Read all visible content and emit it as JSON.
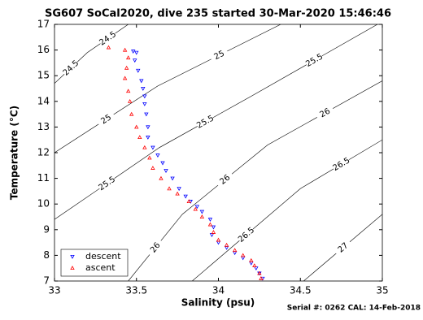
{
  "chart_data": {
    "type": "scatter",
    "title": "SG607 SoCal2020, dive 235 started 30-Mar-2020 15:46:46",
    "x_label": "Salinity (psu)",
    "y_label": "Temperature (°C)",
    "footer": "Serial #: 0262  CAL: 14-Feb-2018",
    "xlim": [
      33,
      35
    ],
    "ylim": [
      7,
      17
    ],
    "xticks": [
      33,
      {
        "value": 33.5,
        "label": "33.5"
      },
      34,
      {
        "value": 34.5,
        "label": "34.5"
      },
      35
    ],
    "yticks": [
      7,
      8,
      9,
      10,
      11,
      12,
      13,
      14,
      15,
      16,
      17
    ],
    "legend": "lower left",
    "series": [
      {
        "name": "descent",
        "color": "#0000ff",
        "marker": "v",
        "x": [
          33.48,
          33.5,
          33.49,
          33.51,
          33.53,
          33.54,
          33.55,
          33.55,
          33.56,
          33.57,
          33.57,
          33.6,
          33.63,
          33.66,
          33.68,
          33.72,
          33.76,
          33.8,
          33.83,
          33.87,
          33.9,
          33.95,
          33.97,
          33.96,
          34.0,
          34.05,
          34.1,
          34.15,
          34.2,
          34.23,
          34.25,
          34.27
        ],
        "y": [
          15.95,
          15.9,
          15.6,
          15.2,
          14.8,
          14.5,
          14.2,
          13.9,
          13.5,
          13.0,
          12.6,
          12.2,
          11.9,
          11.6,
          11.3,
          11.0,
          10.6,
          10.3,
          10.1,
          9.9,
          9.7,
          9.4,
          9.1,
          8.8,
          8.5,
          8.3,
          8.1,
          7.9,
          7.7,
          7.5,
          7.3,
          7.1
        ]
      },
      {
        "name": "ascent",
        "color": "#ff0000",
        "marker": "^",
        "x": [
          33.33,
          33.43,
          33.45,
          33.44,
          33.43,
          33.45,
          33.46,
          33.47,
          33.5,
          33.52,
          33.55,
          33.58,
          33.6,
          33.65,
          33.7,
          33.75,
          33.82,
          33.86,
          33.9,
          33.95,
          33.97,
          34.0,
          34.05,
          34.1,
          34.15,
          34.2,
          34.22,
          34.25,
          34.26
        ],
        "y": [
          16.1,
          16.0,
          15.7,
          15.3,
          14.9,
          14.4,
          14.0,
          13.5,
          13.0,
          12.6,
          12.2,
          11.8,
          11.4,
          11.0,
          10.6,
          10.4,
          10.1,
          9.8,
          9.5,
          9.2,
          8.9,
          8.6,
          8.4,
          8.2,
          8.0,
          7.8,
          7.6,
          7.3,
          7.1
        ]
      }
    ],
    "contours": [
      {
        "level": 24.5,
        "x": [
          33.0,
          33.2,
          33.45
        ],
        "y": [
          14.7,
          15.9,
          17.0
        ]
      },
      {
        "level": 25,
        "x": [
          33.0,
          33.63,
          34.38
        ],
        "y": [
          12.0,
          14.6,
          17.0
        ]
      },
      {
        "level": 25.5,
        "x": [
          33.0,
          33.64,
          34.2,
          34.97
        ],
        "y": [
          9.4,
          12.2,
          14.2,
          17.0
        ]
      },
      {
        "level": 26,
        "x": [
          33.45,
          33.78,
          34.3,
          35.0
        ],
        "y": [
          7.0,
          9.6,
          12.3,
          14.8
        ]
      },
      {
        "level": 26.5,
        "x": [
          33.84,
          34.5,
          35.0
        ],
        "y": [
          7.0,
          10.6,
          12.5
        ]
      },
      {
        "level": 27,
        "x": [
          34.52,
          35.0
        ],
        "y": [
          7.0,
          9.6
        ]
      }
    ]
  }
}
